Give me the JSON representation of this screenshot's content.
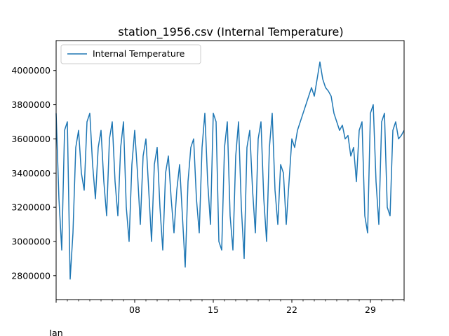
{
  "chart_data": {
    "type": "line",
    "title": "station_1956.csv (Internal Temperature)",
    "xlabel": "",
    "ylabel": "",
    "x_start": "2018-01-01",
    "x_end": "2018-02-01",
    "x_ticks_major": [
      {
        "date": "2018-01-08",
        "label": "08"
      },
      {
        "date": "2018-01-15",
        "label": "15"
      },
      {
        "date": "2018-01-22",
        "label": "22"
      },
      {
        "date": "2018-01-29",
        "label": "29"
      }
    ],
    "x_secondary_label": "Jan",
    "ylim": [
      2660000,
      4175000
    ],
    "y_ticks": [
      {
        "value": 2800000,
        "label": "2800000"
      },
      {
        "value": 3000000,
        "label": "3000000"
      },
      {
        "value": 3200000,
        "label": "3200000"
      },
      {
        "value": 3400000,
        "label": "3400000"
      },
      {
        "value": 3600000,
        "label": "3600000"
      },
      {
        "value": 3800000,
        "label": "3800000"
      },
      {
        "value": 4000000,
        "label": "4000000"
      }
    ],
    "grid": false,
    "legend": {
      "position": "top-left"
    },
    "series": [
      {
        "name": "Internal Temperature",
        "color": "#1f77b4",
        "x": [
          "2018-01-01 00:00",
          "2018-01-01 06:00",
          "2018-01-01 12:00",
          "2018-01-01 18:00",
          "2018-01-02 00:00",
          "2018-01-02 06:00",
          "2018-01-02 12:00",
          "2018-01-02 18:00",
          "2018-01-03 00:00",
          "2018-01-03 06:00",
          "2018-01-03 12:00",
          "2018-01-03 18:00",
          "2018-01-04 00:00",
          "2018-01-04 06:00",
          "2018-01-04 12:00",
          "2018-01-04 18:00",
          "2018-01-05 00:00",
          "2018-01-05 06:00",
          "2018-01-05 12:00",
          "2018-01-05 18:00",
          "2018-01-06 00:00",
          "2018-01-06 06:00",
          "2018-01-06 12:00",
          "2018-01-06 18:00",
          "2018-01-07 00:00",
          "2018-01-07 06:00",
          "2018-01-07 12:00",
          "2018-01-07 18:00",
          "2018-01-08 00:00",
          "2018-01-08 06:00",
          "2018-01-08 12:00",
          "2018-01-08 18:00",
          "2018-01-09 00:00",
          "2018-01-09 06:00",
          "2018-01-09 12:00",
          "2018-01-09 18:00",
          "2018-01-10 00:00",
          "2018-01-10 06:00",
          "2018-01-10 12:00",
          "2018-01-10 18:00",
          "2018-01-11 00:00",
          "2018-01-11 06:00",
          "2018-01-11 12:00",
          "2018-01-11 18:00",
          "2018-01-12 00:00",
          "2018-01-12 06:00",
          "2018-01-12 12:00",
          "2018-01-12 18:00",
          "2018-01-13 00:00",
          "2018-01-13 06:00",
          "2018-01-13 12:00",
          "2018-01-13 18:00",
          "2018-01-14 00:00",
          "2018-01-14 06:00",
          "2018-01-14 12:00",
          "2018-01-14 18:00",
          "2018-01-15 00:00",
          "2018-01-15 06:00",
          "2018-01-15 12:00",
          "2018-01-15 18:00",
          "2018-01-16 00:00",
          "2018-01-16 06:00",
          "2018-01-16 12:00",
          "2018-01-16 18:00",
          "2018-01-17 00:00",
          "2018-01-17 06:00",
          "2018-01-17 12:00",
          "2018-01-17 18:00",
          "2018-01-18 00:00",
          "2018-01-18 06:00",
          "2018-01-18 12:00",
          "2018-01-18 18:00",
          "2018-01-19 00:00",
          "2018-01-19 06:00",
          "2018-01-19 12:00",
          "2018-01-19 18:00",
          "2018-01-20 00:00",
          "2018-01-20 06:00",
          "2018-01-20 12:00",
          "2018-01-20 18:00",
          "2018-01-21 00:00",
          "2018-01-21 06:00",
          "2018-01-21 12:00",
          "2018-01-21 18:00",
          "2018-01-22 00:00",
          "2018-01-22 06:00",
          "2018-01-22 12:00",
          "2018-01-22 18:00",
          "2018-01-23 00:00",
          "2018-01-23 06:00",
          "2018-01-23 12:00",
          "2018-01-23 18:00",
          "2018-01-24 00:00",
          "2018-01-24 06:00",
          "2018-01-24 12:00",
          "2018-01-24 18:00",
          "2018-01-25 00:00",
          "2018-01-25 06:00",
          "2018-01-25 12:00",
          "2018-01-25 18:00",
          "2018-01-26 00:00",
          "2018-01-26 06:00",
          "2018-01-26 12:00",
          "2018-01-26 18:00",
          "2018-01-27 00:00",
          "2018-01-27 06:00",
          "2018-01-27 12:00",
          "2018-01-27 18:00",
          "2018-01-28 00:00",
          "2018-01-28 06:00",
          "2018-01-28 12:00",
          "2018-01-28 18:00",
          "2018-01-29 00:00",
          "2018-01-29 06:00",
          "2018-01-29 12:00",
          "2018-01-29 18:00",
          "2018-01-30 00:00",
          "2018-01-30 06:00",
          "2018-01-30 12:00",
          "2018-01-30 18:00",
          "2018-01-31 00:00",
          "2018-01-31 06:00",
          "2018-01-31 12:00",
          "2018-01-31 18:00",
          "2018-02-01 00:00"
        ],
        "values": [
          3750000,
          3250000,
          2950000,
          3650000,
          3700000,
          2780000,
          3050000,
          3550000,
          3650000,
          3400000,
          3300000,
          3700000,
          3750000,
          3450000,
          3250000,
          3550000,
          3650000,
          3350000,
          3150000,
          3600000,
          3700000,
          3350000,
          3150000,
          3550000,
          3700000,
          3200000,
          3000000,
          3450000,
          3650000,
          3400000,
          3100000,
          3500000,
          3600000,
          3300000,
          3000000,
          3450000,
          3550000,
          3200000,
          2950000,
          3400000,
          3500000,
          3250000,
          3050000,
          3300000,
          3450000,
          3150000,
          2850000,
          3350000,
          3550000,
          3600000,
          3250000,
          3050000,
          3550000,
          3750000,
          3350000,
          3100000,
          3750000,
          3700000,
          3000000,
          2950000,
          3550000,
          3700000,
          3150000,
          2950000,
          3500000,
          3700000,
          3200000,
          2900000,
          3550000,
          3650000,
          3300000,
          3050000,
          3600000,
          3700000,
          3250000,
          3000000,
          3550000,
          3750000,
          3300000,
          3100000,
          3450000,
          3400000,
          3100000,
          3350000,
          3600000,
          3550000,
          3650000,
          3700000,
          3750000,
          3800000,
          3850000,
          3900000,
          3850000,
          3950000,
          4050000,
          3950000,
          3900000,
          3880000,
          3850000,
          3750000,
          3700000,
          3650000,
          3680000,
          3600000,
          3620000,
          3500000,
          3550000,
          3350000,
          3650000,
          3700000,
          3150000,
          3050000,
          3750000,
          3800000,
          3350000,
          3100000,
          3700000,
          3750000,
          3200000,
          3150000,
          3650000,
          3700000,
          3600000,
          3620000,
          3650000
        ]
      }
    ]
  }
}
